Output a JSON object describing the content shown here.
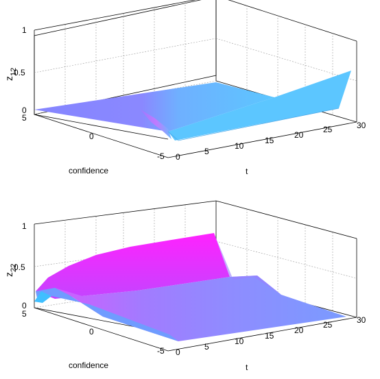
{
  "chart_data": [
    {
      "type": "surface",
      "zlabel": "z",
      "zlabel_sub": "12",
      "xlabel": "t",
      "ylabel": "confidence",
      "xlim": [
        0,
        30
      ],
      "ylim": [
        -5,
        5
      ],
      "zlim": [
        0,
        1
      ],
      "x_ticks": [
        "0",
        "5",
        "10",
        "15",
        "20",
        "25",
        "30"
      ],
      "y_ticks": [
        "-5",
        "0",
        "5"
      ],
      "z_ticks": [
        "0",
        "0.5",
        "1"
      ],
      "grid": true,
      "surface_colors": [
        "#7f7fff",
        "#c07fff",
        "#5fc8ff"
      ],
      "surface": {
        "description_values": {
          "far_edge_z_at_t": [
            [
              0,
              0.0
            ],
            [
              15,
              0.1
            ],
            [
              30,
              0.2
            ]
          ],
          "near_edge_z_at_t": [
            [
              0,
              0.0
            ],
            [
              5,
              0.05
            ],
            [
              30,
              0.45
            ]
          ],
          "dip_at_t": 3
        }
      }
    },
    {
      "type": "surface",
      "zlabel": "z",
      "zlabel_sub": "22",
      "xlabel": "t",
      "ylabel": "confidence",
      "xlim": [
        0,
        30
      ],
      "ylim": [
        -5,
        5
      ],
      "zlim": [
        0,
        1
      ],
      "x_ticks": [
        "0",
        "5",
        "10",
        "15",
        "20",
        "25",
        "30"
      ],
      "y_ticks": [
        "-5",
        "0",
        "5"
      ],
      "z_ticks": [
        "0",
        "0.5",
        "1"
      ],
      "grid": true,
      "surface_colors": [
        "#ff2fff",
        "#8f8fff",
        "#3fbfff"
      ],
      "surface": {
        "description_values": {
          "far_edge_z_at_t": [
            [
              0,
              0.15
            ],
            [
              10,
              0.75
            ],
            [
              20,
              0.95
            ]
          ],
          "near_edge_z_at_t": [
            [
              0,
              0.05
            ],
            [
              30,
              0.0
            ]
          ],
          "ridge_drop_at_t": 20
        }
      }
    }
  ]
}
